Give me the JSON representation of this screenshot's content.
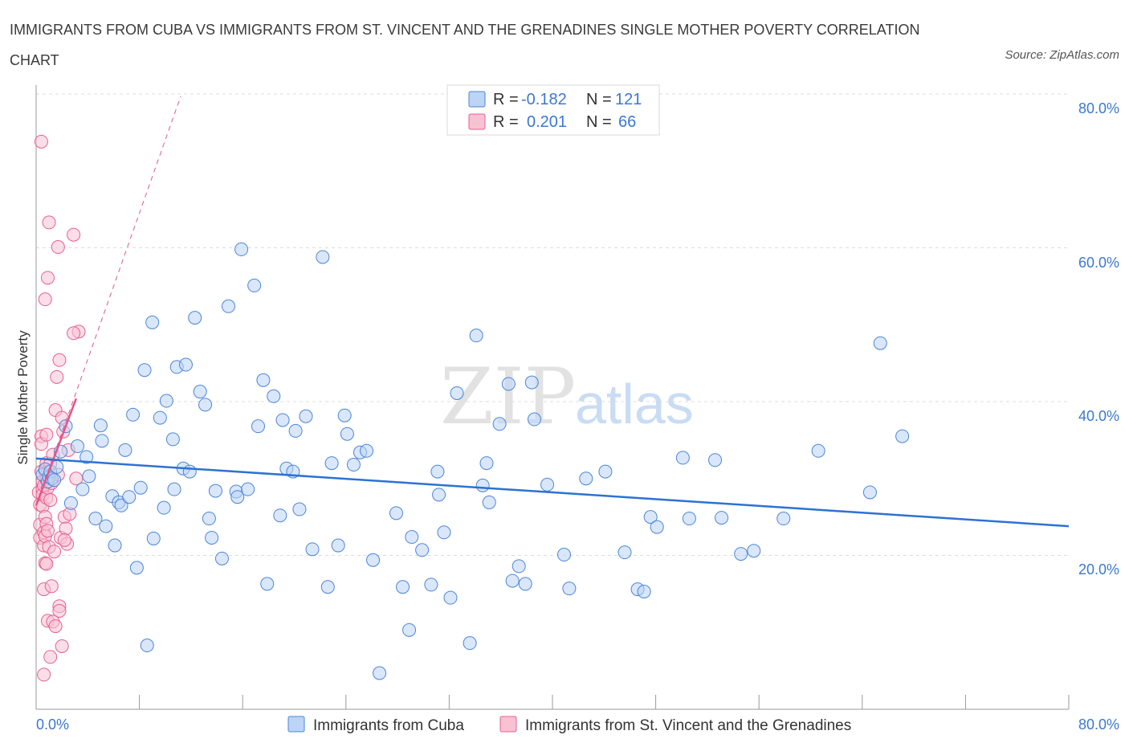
{
  "title": "IMMIGRANTS FROM CUBA VS IMMIGRANTS FROM ST. VINCENT AND THE GRENADINES SINGLE MOTHER POVERTY CORRELATION CHART",
  "source": "Source: ZipAtlas.com",
  "watermark": {
    "zip": "ZIP",
    "atlas": "atlas"
  },
  "colors": {
    "cuba": "#4a86d8",
    "cuba_fill": "#bcd4f5",
    "svg": "#e85f8e",
    "svg_fill": "#f8c2d3",
    "trend_cuba": "#2d72d2",
    "trend_svg": "#e0578a",
    "axis_text": "#3b78d0",
    "grid": "#dcdcdc"
  },
  "legend": {
    "rows": [
      {
        "r_label": "R =",
        "r_value": "-0.182",
        "n_label": "N =",
        "n_value": "121"
      },
      {
        "r_label": "R =",
        "r_value": "0.201",
        "n_label": "N =",
        "n_value": "66"
      }
    ]
  },
  "bottom_legend": {
    "cuba": "Immigrants from Cuba",
    "svg": "Immigrants from St. Vincent and the Grenadines"
  },
  "chart_data": {
    "type": "scatter",
    "title": "IMMIGRANTS FROM CUBA VS IMMIGRANTS FROM ST. VINCENT AND THE GRENADINES SINGLE MOTHER POVERTY CORRELATION CHART",
    "xlabel": "",
    "ylabel": "Single Mother Poverty",
    "xlim": [
      0,
      80
    ],
    "ylim": [
      0,
      80
    ],
    "x_tick_labels": [
      "0.0%",
      "80.0%"
    ],
    "y_ticks": [
      20,
      40,
      60,
      80
    ],
    "y_tick_labels": [
      "20.0%",
      "40.0%",
      "60.0%",
      "80.0%"
    ],
    "grid": true,
    "legend_position": "top-center",
    "series": [
      {
        "name": "Immigrants from Cuba",
        "r": -0.182,
        "n": 121,
        "trend": {
          "x": [
            0,
            80
          ],
          "y": [
            32.6,
            23.8
          ]
        },
        "points": [
          [
            0.5,
            30.5
          ],
          [
            0.7,
            31.2
          ],
          [
            0.9,
            29.6
          ],
          [
            1.0,
            30.2
          ],
          [
            1.1,
            30.9
          ],
          [
            1.2,
            30.0
          ],
          [
            1.4,
            29.8
          ],
          [
            1.6,
            31.5
          ],
          [
            1.9,
            33.5
          ],
          [
            2.3,
            36.8
          ],
          [
            2.7,
            26.8
          ],
          [
            3.2,
            34.2
          ],
          [
            3.6,
            28.6
          ],
          [
            3.9,
            32.8
          ],
          [
            4.1,
            30.3
          ],
          [
            4.6,
            24.8
          ],
          [
            5.0,
            36.9
          ],
          [
            5.1,
            34.9
          ],
          [
            5.4,
            23.8
          ],
          [
            5.9,
            27.7
          ],
          [
            6.1,
            21.3
          ],
          [
            6.4,
            26.9
          ],
          [
            6.6,
            26.5
          ],
          [
            6.9,
            33.7
          ],
          [
            7.2,
            27.6
          ],
          [
            7.5,
            38.3
          ],
          [
            7.8,
            18.4
          ],
          [
            8.1,
            28.8
          ],
          [
            8.4,
            44.1
          ],
          [
            8.6,
            8.3
          ],
          [
            9.0,
            50.3
          ],
          [
            9.1,
            22.2
          ],
          [
            9.6,
            37.9
          ],
          [
            9.9,
            26.2
          ],
          [
            10.1,
            40.1
          ],
          [
            10.6,
            35.1
          ],
          [
            10.7,
            28.6
          ],
          [
            10.9,
            44.5
          ],
          [
            11.4,
            31.3
          ],
          [
            11.6,
            44.8
          ],
          [
            11.9,
            30.9
          ],
          [
            12.3,
            50.9
          ],
          [
            12.7,
            41.3
          ],
          [
            13.1,
            39.6
          ],
          [
            13.4,
            24.8
          ],
          [
            13.6,
            22.3
          ],
          [
            13.9,
            28.4
          ],
          [
            14.4,
            19.6
          ],
          [
            14.9,
            52.4
          ],
          [
            15.5,
            28.3
          ],
          [
            15.6,
            27.6
          ],
          [
            15.9,
            59.8
          ],
          [
            16.4,
            28.6
          ],
          [
            16.9,
            55.1
          ],
          [
            17.2,
            36.8
          ],
          [
            17.6,
            42.8
          ],
          [
            17.9,
            16.3
          ],
          [
            18.4,
            40.7
          ],
          [
            18.9,
            25.2
          ],
          [
            19.1,
            37.6
          ],
          [
            19.4,
            31.3
          ],
          [
            19.9,
            30.9
          ],
          [
            20.1,
            36.2
          ],
          [
            20.4,
            26.0
          ],
          [
            20.9,
            38.1
          ],
          [
            21.4,
            20.8
          ],
          [
            22.2,
            58.8
          ],
          [
            22.6,
            15.9
          ],
          [
            22.9,
            32.0
          ],
          [
            23.4,
            21.3
          ],
          [
            23.9,
            38.2
          ],
          [
            24.1,
            35.8
          ],
          [
            24.6,
            31.8
          ],
          [
            25.1,
            33.4
          ],
          [
            25.6,
            33.6
          ],
          [
            26.1,
            19.4
          ],
          [
            26.6,
            4.7
          ],
          [
            27.9,
            25.5
          ],
          [
            28.4,
            15.9
          ],
          [
            28.9,
            10.3
          ],
          [
            29.1,
            22.4
          ],
          [
            29.9,
            20.7
          ],
          [
            30.6,
            16.2
          ],
          [
            31.1,
            30.9
          ],
          [
            31.2,
            27.9
          ],
          [
            31.6,
            23.0
          ],
          [
            32.1,
            14.5
          ],
          [
            32.6,
            41.1
          ],
          [
            33.6,
            8.6
          ],
          [
            34.1,
            48.6
          ],
          [
            34.6,
            29.1
          ],
          [
            34.9,
            32.0
          ],
          [
            35.1,
            26.9
          ],
          [
            35.9,
            37.1
          ],
          [
            36.6,
            42.3
          ],
          [
            36.9,
            16.7
          ],
          [
            37.4,
            18.6
          ],
          [
            37.9,
            16.3
          ],
          [
            38.4,
            42.5
          ],
          [
            38.6,
            37.7
          ],
          [
            39.6,
            29.2
          ],
          [
            40.9,
            20.1
          ],
          [
            41.3,
            15.7
          ],
          [
            42.6,
            30.0
          ],
          [
            44.1,
            30.9
          ],
          [
            45.6,
            20.4
          ],
          [
            46.6,
            15.6
          ],
          [
            47.1,
            15.3
          ],
          [
            47.6,
            25.0
          ],
          [
            48.1,
            23.7
          ],
          [
            50.1,
            32.7
          ],
          [
            50.6,
            24.8
          ],
          [
            52.6,
            32.4
          ],
          [
            53.1,
            24.9
          ],
          [
            54.6,
            20.2
          ],
          [
            55.6,
            20.6
          ],
          [
            57.9,
            24.8
          ],
          [
            60.6,
            33.6
          ],
          [
            64.6,
            28.2
          ],
          [
            65.4,
            47.6
          ],
          [
            67.1,
            35.5
          ]
        ]
      },
      {
        "name": "Immigrants from St. Vincent and the Grenadines",
        "r": 0.201,
        "n": 66,
        "trend": {
          "x": [
            0,
            3.1
          ],
          "y": [
            26.5,
            40.4
          ]
        },
        "trend_extended": {
          "x": [
            0,
            11.2
          ],
          "y": [
            26.5,
            79.7
          ]
        },
        "points": [
          [
            0.2,
            28.2
          ],
          [
            0.3,
            26.6
          ],
          [
            0.3,
            24.0
          ],
          [
            0.3,
            22.3
          ],
          [
            0.4,
            30.9
          ],
          [
            0.4,
            35.5
          ],
          [
            0.4,
            34.5
          ],
          [
            0.5,
            29.6
          ],
          [
            0.5,
            28.6
          ],
          [
            0.5,
            27.9
          ],
          [
            0.5,
            26.4
          ],
          [
            0.6,
            29.1
          ],
          [
            0.6,
            23.0
          ],
          [
            0.6,
            21.3
          ],
          [
            0.6,
            15.6
          ],
          [
            0.7,
            31.0
          ],
          [
            0.7,
            25.0
          ],
          [
            0.7,
            22.5
          ],
          [
            0.7,
            19.0
          ],
          [
            0.8,
            35.7
          ],
          [
            0.8,
            32.0
          ],
          [
            0.8,
            29.9
          ],
          [
            0.8,
            27.5
          ],
          [
            0.8,
            24.1
          ],
          [
            0.8,
            18.9
          ],
          [
            0.9,
            30.9
          ],
          [
            0.9,
            28.8
          ],
          [
            0.9,
            23.2
          ],
          [
            0.9,
            11.5
          ],
          [
            1.0,
            30.4
          ],
          [
            1.0,
            21.1
          ],
          [
            1.1,
            31.9
          ],
          [
            1.1,
            27.2
          ],
          [
            1.1,
            6.8
          ],
          [
            1.2,
            29.4
          ],
          [
            1.3,
            33.1
          ],
          [
            1.3,
            11.4
          ],
          [
            1.5,
            38.9
          ],
          [
            1.6,
            43.2
          ],
          [
            1.7,
            30.5
          ],
          [
            1.8,
            13.4
          ],
          [
            1.8,
            12.8
          ],
          [
            1.9,
            22.3
          ],
          [
            2.0,
            37.9
          ],
          [
            2.1,
            36.1
          ],
          [
            2.2,
            25.0
          ],
          [
            2.3,
            23.5
          ],
          [
            2.4,
            21.5
          ],
          [
            2.5,
            33.7
          ],
          [
            2.6,
            25.4
          ],
          [
            2.9,
            61.7
          ],
          [
            3.3,
            49.1
          ],
          [
            0.4,
            73.8
          ],
          [
            0.6,
            4.5
          ],
          [
            0.7,
            53.3
          ],
          [
            0.9,
            56.1
          ],
          [
            1.0,
            63.3
          ],
          [
            1.2,
            16.0
          ],
          [
            1.4,
            20.5
          ],
          [
            1.5,
            10.8
          ],
          [
            1.7,
            60.1
          ],
          [
            1.8,
            45.4
          ],
          [
            2.0,
            8.2
          ],
          [
            2.2,
            22.0
          ],
          [
            2.9,
            48.9
          ],
          [
            3.1,
            30.0
          ]
        ]
      }
    ]
  }
}
